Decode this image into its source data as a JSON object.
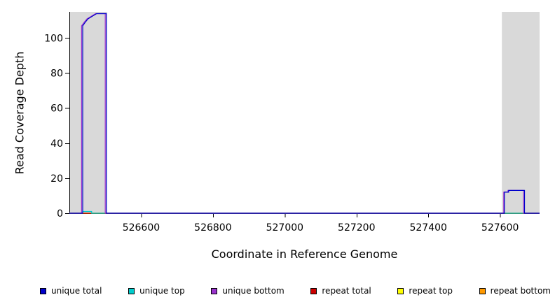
{
  "chart_data": {
    "type": "line",
    "title": "",
    "xlabel": "Coordinate in Reference Genome",
    "ylabel": "Read Coverage Depth",
    "xlim": [
      526400,
      527710
    ],
    "ylim": [
      0,
      115
    ],
    "xticks": [
      526600,
      526800,
      527000,
      527200,
      527400,
      527600
    ],
    "yticks": [
      0,
      20,
      40,
      60,
      80,
      100
    ],
    "grid": false,
    "legend_position": "bottom",
    "axis_color": "#000000",
    "shaded_regions": [
      {
        "x0": 526400,
        "x1": 526505,
        "color": "#d9d9d9",
        "name": "left-masked-region"
      },
      {
        "x0": 527605,
        "x1": 527710,
        "color": "#d9d9d9",
        "name": "right-masked-region"
      }
    ],
    "series": [
      {
        "name": "repeat bottom",
        "color": "#ff9900",
        "points": [
          [
            526400,
            0
          ],
          [
            527710,
            0
          ]
        ]
      },
      {
        "name": "repeat top",
        "color": "#ffff00",
        "points": [
          [
            526400,
            0
          ],
          [
            527710,
            0
          ]
        ]
      },
      {
        "name": "repeat total",
        "color": "#cc0000",
        "points": [
          [
            526400,
            0
          ],
          [
            527710,
            0
          ]
        ]
      },
      {
        "name": "unique top",
        "color": "#00cccc",
        "points": [
          [
            526400,
            0
          ],
          [
            526437,
            0
          ],
          [
            526437,
            1
          ],
          [
            526462,
            1
          ],
          [
            526462,
            0
          ],
          [
            527710,
            0
          ]
        ]
      },
      {
        "name": "unique bottom",
        "color": "#9933cc",
        "points": [
          [
            526400,
            0
          ],
          [
            526434,
            0
          ],
          [
            526434,
            107
          ],
          [
            526441,
            109
          ],
          [
            526449,
            111
          ],
          [
            526457,
            112
          ],
          [
            526465,
            113
          ],
          [
            526473,
            114
          ],
          [
            526500,
            114
          ],
          [
            526500,
            0
          ],
          [
            527610,
            0
          ],
          [
            527610,
            12
          ],
          [
            527622,
            12
          ],
          [
            527622,
            13
          ],
          [
            527665,
            13
          ],
          [
            527665,
            0
          ],
          [
            527710,
            0
          ]
        ]
      },
      {
        "name": "unique total",
        "color": "#0000cc",
        "points": [
          [
            526400,
            0
          ],
          [
            526437,
            0
          ],
          [
            526437,
            107
          ],
          [
            526444,
            109
          ],
          [
            526452,
            111
          ],
          [
            526460,
            112
          ],
          [
            526468,
            113
          ],
          [
            526476,
            114
          ],
          [
            526503,
            114
          ],
          [
            526503,
            0
          ],
          [
            527612,
            0
          ],
          [
            527612,
            12
          ],
          [
            527624,
            12
          ],
          [
            527624,
            13
          ],
          [
            527668,
            13
          ],
          [
            527668,
            0
          ],
          [
            527710,
            0
          ]
        ]
      }
    ],
    "legend": [
      {
        "label": "unique total",
        "color": "#0000cc"
      },
      {
        "label": "unique top",
        "color": "#00cccc"
      },
      {
        "label": "unique bottom",
        "color": "#9933cc"
      },
      {
        "label": "repeat total",
        "color": "#cc0000"
      },
      {
        "label": "repeat top",
        "color": "#ffff00"
      },
      {
        "label": "repeat bottom",
        "color": "#ff9900"
      }
    ]
  }
}
